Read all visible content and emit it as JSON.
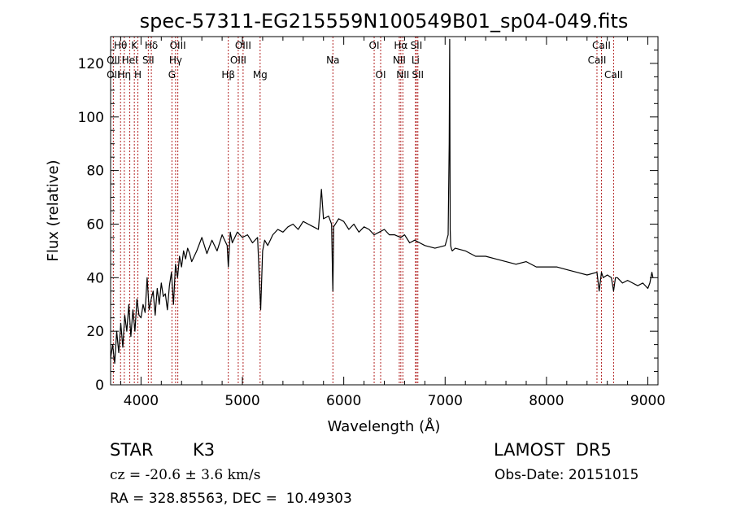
{
  "info": {
    "class_label": "STAR",
    "subclass_label": "K3",
    "survey_label": "LAMOST  DR5",
    "cz_text": "cz = -20.6 ± 3.6 km/s",
    "obs_date_text": "Obs-Date: 20151015",
    "coords_text": "RA = 328.85563, DEC =  10.49303"
  },
  "chart_data": {
    "type": "line",
    "title": "spec-57311-EG215559N100549B01_sp04-049.fits",
    "xlabel": "Wavelength (Å)",
    "ylabel": "Flux (relative)",
    "xlim": [
      3700,
      9100
    ],
    "ylim": [
      0,
      130
    ],
    "xticks": [
      4000,
      5000,
      6000,
      7000,
      8000,
      9000
    ],
    "yticks": [
      0,
      20,
      40,
      60,
      80,
      100,
      120
    ],
    "line_color": "#000000",
    "marker_color": "#b22222",
    "series": [
      {
        "x": [
          3700,
          3720,
          3740,
          3760,
          3780,
          3800,
          3820,
          3840,
          3860,
          3880,
          3900,
          3920,
          3940,
          3960,
          3980,
          4000,
          4020,
          4040,
          4060,
          4080,
          4100,
          4120,
          4140,
          4160,
          4180,
          4200,
          4220,
          4240,
          4260,
          4280,
          4300,
          4320,
          4340,
          4360,
          4380,
          4400,
          4420,
          4440,
          4460,
          4480,
          4500,
          4550,
          4600,
          4650,
          4700,
          4750,
          4800,
          4850,
          4861,
          4880,
          4900,
          4950,
          5000,
          5050,
          5100,
          5150,
          5180,
          5200,
          5220,
          5250,
          5300,
          5350,
          5400,
          5450,
          5500,
          5550,
          5600,
          5650,
          5700,
          5750,
          5780,
          5800,
          5850,
          5880,
          5890,
          5893,
          5896,
          5900,
          5950,
          6000,
          6050,
          6100,
          6150,
          6200,
          6250,
          6300,
          6350,
          6400,
          6450,
          6500,
          6563,
          6600,
          6650,
          6700,
          6750,
          6800,
          6900,
          7000,
          7030,
          7040,
          7045,
          7050,
          7055,
          7060,
          7070,
          7100,
          7200,
          7300,
          7400,
          7500,
          7600,
          7700,
          7800,
          7900,
          8000,
          8100,
          8200,
          8300,
          8400,
          8498,
          8520,
          8542,
          8560,
          8600,
          8640,
          8662,
          8680,
          8700,
          8750,
          8800,
          8850,
          8900,
          8950,
          9000,
          9020,
          9040,
          9050
        ],
        "y": [
          10,
          15,
          8,
          20,
          12,
          23,
          14,
          26,
          20,
          30,
          18,
          28,
          20,
          32,
          26,
          25,
          30,
          27,
          40,
          28,
          32,
          35,
          26,
          36,
          30,
          38,
          33,
          34,
          28,
          37,
          42,
          30,
          45,
          40,
          48,
          44,
          50,
          47,
          51,
          49,
          46,
          50,
          55,
          49,
          54,
          50,
          56,
          52,
          44,
          57,
          53,
          57,
          55,
          56,
          53,
          55,
          28,
          50,
          54,
          52,
          56,
          58,
          57,
          59,
          60,
          58,
          61,
          60,
          59,
          58,
          73,
          62,
          63,
          60,
          40,
          35,
          45,
          59,
          62,
          61,
          58,
          60,
          57,
          59,
          58,
          56,
          57,
          58,
          56,
          56,
          55,
          56,
          53,
          54,
          53,
          52,
          51,
          52,
          56,
          90,
          129,
          58,
          52,
          51,
          50,
          51,
          50,
          48,
          48,
          47,
          46,
          45,
          46,
          44,
          44,
          44,
          43,
          42,
          41,
          42,
          35,
          42,
          40,
          41,
          40,
          35,
          40,
          40,
          38,
          39,
          38,
          37,
          38,
          36,
          38,
          42,
          40
        ]
      }
    ],
    "line_markers": [
      {
        "label": "Hθ",
        "wave": 3798,
        "row": 0
      },
      {
        "label": "OII",
        "wave": 3727,
        "row": 1
      },
      {
        "label": "OII",
        "wave": 3727,
        "row": 2
      },
      {
        "label": "Hη",
        "wave": 3835,
        "row": 2
      },
      {
        "label": "K",
        "wave": 3934,
        "row": 0
      },
      {
        "label": "HeI",
        "wave": 3889,
        "row": 1
      },
      {
        "label": "H",
        "wave": 3969,
        "row": 2
      },
      {
        "label": "Hδ",
        "wave": 4102,
        "row": 0
      },
      {
        "label": "SII",
        "wave": 4072,
        "row": 1
      },
      {
        "label": "OIII",
        "wave": 4363,
        "row": 0
      },
      {
        "label": "Hγ",
        "wave": 4341,
        "row": 1
      },
      {
        "label": "G",
        "wave": 4305,
        "row": 2
      },
      {
        "label": "OIII",
        "wave": 5007,
        "row": 0
      },
      {
        "label": "OIII",
        "wave": 4959,
        "row": 1
      },
      {
        "label": "Hβ",
        "wave": 4861,
        "row": 2
      },
      {
        "label": "Mg",
        "wave": 5175,
        "row": 2
      },
      {
        "label": "Na",
        "wave": 5893,
        "row": 1
      },
      {
        "label": "OI",
        "wave": 6300,
        "row": 0
      },
      {
        "label": "OI",
        "wave": 6364,
        "row": 2
      },
      {
        "label": "Hα",
        "wave": 6563,
        "row": 0
      },
      {
        "label": "NII",
        "wave": 6548,
        "row": 1
      },
      {
        "label": "NII",
        "wave": 6583,
        "row": 2
      },
      {
        "label": "SII",
        "wave": 6716,
        "row": 0
      },
      {
        "label": "Li",
        "wave": 6708,
        "row": 1
      },
      {
        "label": "SII",
        "wave": 6731,
        "row": 2
      },
      {
        "label": "CaII",
        "wave": 8542,
        "row": 0
      },
      {
        "label": "CaII",
        "wave": 8498,
        "row": 1
      },
      {
        "label": "CaII",
        "wave": 8662,
        "row": 2
      }
    ],
    "marker_lines": [
      3727,
      3798,
      3835,
      3889,
      3934,
      3969,
      4072,
      4102,
      4305,
      4341,
      4363,
      4861,
      4959,
      5007,
      5175,
      5893,
      6300,
      6364,
      6548,
      6563,
      6583,
      6708,
      6716,
      6731,
      8498,
      8542,
      8662
    ]
  }
}
